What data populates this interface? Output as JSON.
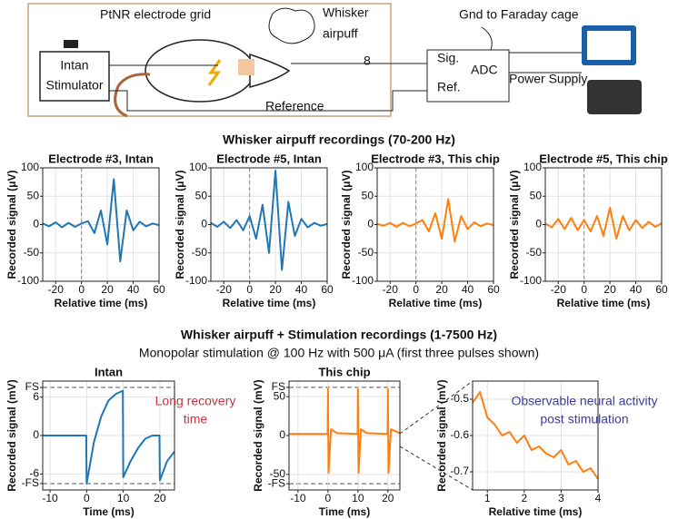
{
  "diagram": {
    "electrode_label": "PtNR electrode grid",
    "airpuff_label": [
      "Whisker",
      "airpuff"
    ],
    "gnd_label": "Gnd to Faraday cage",
    "stimulator_label": [
      "Intan",
      "Stimulator"
    ],
    "channel_count": "8",
    "sig_label": "Sig.",
    "adc_label": "ADC",
    "ref_label": "Ref.",
    "power_label": "Power Supply",
    "reference_label": "Reference"
  },
  "section_titles": [
    "Whisker airpuff recordings (70-200 Hz)",
    "Whisker airpuff + Stimulation recordings (1-7500 Hz)"
  ],
  "section_subtitle": "Monopolar stimulation @ 100 Hz with 500 μA (first three pulses shown)",
  "chart_data": [
    {
      "type": "line",
      "title": "Electrode #3, Intan",
      "x_label": "Relative time (ms)",
      "y_label": "Recorded signal (μV)",
      "grid": true,
      "vline": 0,
      "x": [
        -30,
        -25,
        -20,
        -15,
        -10,
        -5,
        0,
        5,
        10,
        15,
        20,
        25,
        30,
        35,
        40,
        45,
        50,
        55,
        60
      ],
      "series": [
        {
          "color": "#1f77b4",
          "values": [
            2,
            -3,
            4,
            -5,
            3,
            -4,
            2,
            6,
            -15,
            25,
            -35,
            80,
            -65,
            25,
            -10,
            5,
            -3,
            2,
            -1
          ]
        }
      ],
      "xlim": [
        -30,
        60
      ],
      "xticks": [
        -20,
        0,
        20,
        40,
        60
      ],
      "ylim": [
        -100,
        100
      ],
      "yticks": [
        -100,
        -50,
        0,
        50,
        100
      ]
    },
    {
      "type": "line",
      "title": "Electrode #5, Intan",
      "x_label": "Relative time (ms)",
      "y_label": "Recorded signal (μV)",
      "grid": true,
      "vline": 0,
      "x": [
        -30,
        -25,
        -20,
        -15,
        -10,
        -5,
        0,
        5,
        10,
        15,
        20,
        25,
        30,
        35,
        40,
        45,
        50,
        55,
        60
      ],
      "series": [
        {
          "color": "#1f77b4",
          "values": [
            3,
            -4,
            5,
            -6,
            8,
            -10,
            15,
            -25,
            35,
            -50,
            95,
            -80,
            40,
            -20,
            10,
            -5,
            3,
            -2,
            1
          ]
        }
      ],
      "xlim": [
        -30,
        60
      ],
      "xticks": [
        -20,
        0,
        20,
        40,
        60
      ],
      "ylim": [
        -100,
        100
      ],
      "yticks": [
        -100,
        -50,
        0,
        50,
        100
      ]
    },
    {
      "type": "line",
      "title": "Electrode #3, This chip",
      "x_label": "Relative time (ms)",
      "y_label": "Recorded signal (μV)",
      "grid": true,
      "vline": 0,
      "x": [
        -30,
        -25,
        -20,
        -15,
        -10,
        -5,
        0,
        5,
        10,
        15,
        20,
        25,
        30,
        35,
        40,
        45,
        50,
        55,
        60
      ],
      "series": [
        {
          "color": "#ff7f0e",
          "values": [
            1,
            -2,
            3,
            -4,
            3,
            -3,
            2,
            8,
            -12,
            20,
            -25,
            45,
            -30,
            15,
            -8,
            4,
            -3,
            2,
            -1
          ]
        }
      ],
      "xlim": [
        -30,
        60
      ],
      "xticks": [
        -20,
        0,
        20,
        40,
        60
      ],
      "ylim": [
        -100,
        100
      ],
      "yticks": [
        -100,
        -50,
        0,
        50,
        100
      ]
    },
    {
      "type": "line",
      "title": "Electrode #5, This chip",
      "x_label": "Relative time (ms)",
      "y_label": "Recorded signal (μV)",
      "grid": true,
      "vline": 0,
      "x": [
        -30,
        -25,
        -20,
        -15,
        -10,
        -5,
        0,
        5,
        10,
        15,
        20,
        25,
        30,
        35,
        40,
        45,
        50,
        55,
        60
      ],
      "series": [
        {
          "color": "#ff7f0e",
          "values": [
            2,
            -5,
            10,
            -8,
            12,
            -10,
            8,
            -12,
            15,
            -20,
            30,
            -25,
            15,
            -10,
            8,
            -6,
            5,
            -4,
            2
          ]
        }
      ],
      "xlim": [
        -30,
        60
      ],
      "xticks": [
        -20,
        0,
        20,
        40,
        60
      ],
      "ylim": [
        -100,
        100
      ],
      "yticks": [
        -100,
        -50,
        0,
        50,
        100
      ]
    },
    {
      "type": "line",
      "title": "Intan",
      "x_label": "Time (ms)",
      "y_label": "Recorded signal (mV)",
      "grid": true,
      "annotation": [
        "Long recovery",
        "time"
      ],
      "annotation_color": "#c8323c",
      "x": [
        -12,
        -0.1,
        0,
        2,
        4,
        6,
        8,
        9.9,
        10,
        12,
        14,
        16,
        18,
        19.9,
        20,
        22,
        24
      ],
      "series": [
        {
          "color": "#1f77b4",
          "values": [
            0,
            0,
            -7.5,
            -1,
            3,
            5.5,
            6.5,
            7,
            -6.5,
            -4,
            -2,
            -0.5,
            0,
            0,
            -7,
            -4,
            -2.5
          ]
        }
      ],
      "xlim": [
        -12,
        24
      ],
      "xticks": [
        -10,
        0,
        10,
        20
      ],
      "ylim": [
        -8.5,
        8.5
      ],
      "yticks": [
        {
          "value": -7.5,
          "label": "-FS"
        },
        -6,
        0,
        6,
        {
          "value": 7.5,
          "label": "FS"
        }
      ]
    },
    {
      "type": "line",
      "title": "This chip",
      "x_label": "Time (ms)",
      "y_label": "Recorded signal (mV)",
      "grid": true,
      "x": [
        -13,
        -0.1,
        0,
        0.2,
        1,
        3,
        9.9,
        10,
        10.2,
        11,
        13,
        19.9,
        20,
        20.2,
        21,
        24
      ],
      "series": [
        {
          "color": "#ff7f0e",
          "values": [
            2,
            2,
            60,
            -48,
            8,
            3,
            2,
            60,
            -48,
            8,
            3,
            2,
            60,
            -48,
            8,
            3
          ]
        }
      ],
      "xlim": [
        -13,
        24
      ],
      "xticks": [
        -10,
        0,
        10,
        20
      ],
      "ylim": [
        -70,
        70
      ],
      "yticks": [
        {
          "value": -62,
          "label": "-FS"
        },
        -50,
        0,
        50,
        {
          "value": 62,
          "label": "FS"
        }
      ]
    },
    {
      "type": "line",
      "x_label": "Relative time (ms)",
      "y_label": "Recorded signal (mV)",
      "grid": true,
      "annotation": [
        "Observable neural activity",
        "post stimulation"
      ],
      "annotation_color": "#3c3ca0",
      "x": [
        0.6,
        0.8,
        1.0,
        1.2,
        1.4,
        1.6,
        1.8,
        2.0,
        2.2,
        2.4,
        2.6,
        2.8,
        3.0,
        3.2,
        3.4,
        3.6,
        3.8,
        4.0
      ],
      "series": [
        {
          "color": "#ff7f0e",
          "values": [
            -0.51,
            -0.48,
            -0.55,
            -0.57,
            -0.6,
            -0.59,
            -0.62,
            -0.6,
            -0.64,
            -0.63,
            -0.65,
            -0.66,
            -0.64,
            -0.68,
            -0.67,
            -0.7,
            -0.69,
            -0.72
          ]
        }
      ],
      "xlim": [
        0.6,
        4
      ],
      "xticks": [
        1,
        2,
        3,
        4
      ],
      "ylim": [
        -0.75,
        -0.45
      ],
      "yticks": [
        -0.7,
        -0.6,
        -0.5
      ]
    }
  ]
}
